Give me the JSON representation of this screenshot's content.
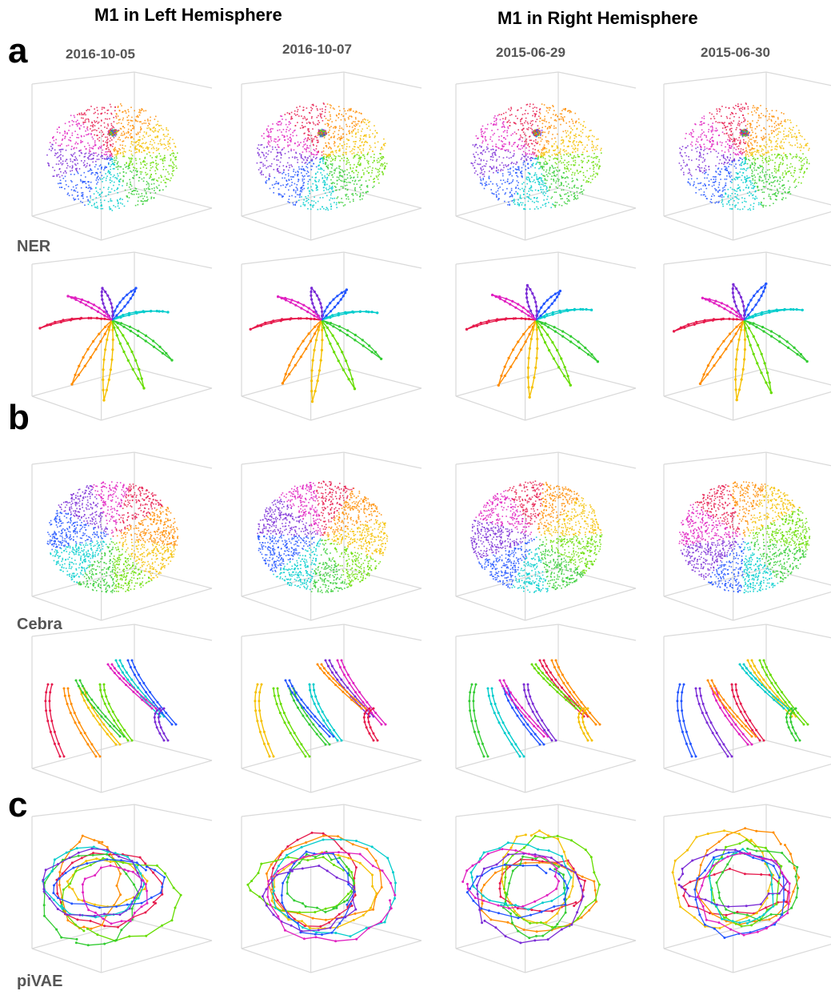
{
  "headers": {
    "left_hemisphere": "M1 in Left Hemisphere",
    "right_hemisphere": "M1 in Right Hemisphere"
  },
  "dates": [
    "2016-10-05",
    "2016-10-07",
    "2015-06-29",
    "2015-06-30"
  ],
  "panels": [
    {
      "letter": "a",
      "method": "NER"
    },
    {
      "letter": "b",
      "method": "Cebra"
    },
    {
      "letter": "c",
      "method": "piVAE"
    }
  ],
  "colors": {
    "direction_palette": [
      "#e6194b",
      "#ff8c00",
      "#f5c000",
      "#66dd00",
      "#33cc33",
      "#00cccc",
      "#2255ff",
      "#7a2bd6",
      "#e020c0"
    ],
    "axes_box": "#d9d9d9",
    "label_gray": "#555555"
  }
}
